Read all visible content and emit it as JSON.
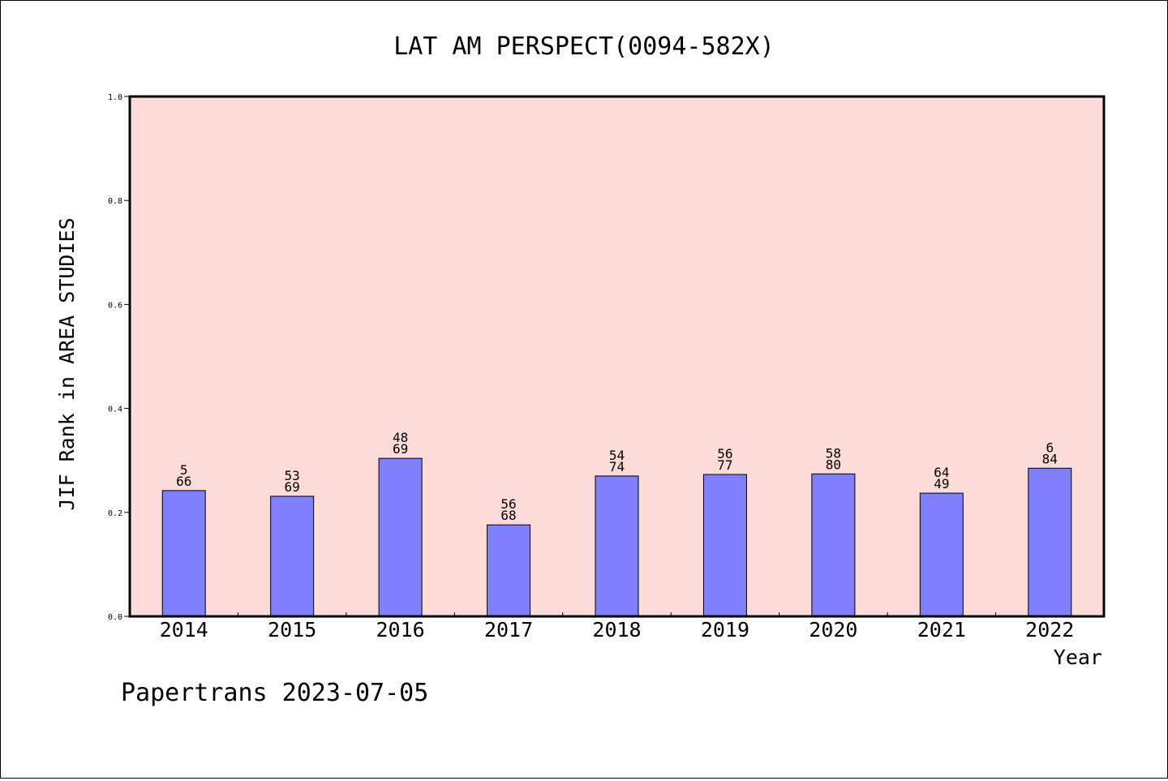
{
  "chart_data": {
    "type": "bar",
    "title": "LAT AM PERSPECT(0094-582X)",
    "xlabel": "Year",
    "ylabel": "JIF Rank in AREA STUDIES",
    "ylim": [
      0,
      1.0
    ],
    "yticks": [
      "0.0",
      "0.2",
      "0.4",
      "0.6",
      "0.8",
      "1.0"
    ],
    "grid": false,
    "background_color": "#fddbd8",
    "bar_color": "#8080ff",
    "categories": [
      "2014",
      "2015",
      "2016",
      "2017",
      "2018",
      "2019",
      "2020",
      "2021",
      "2022"
    ],
    "values": [
      0.242,
      0.231,
      0.304,
      0.176,
      0.27,
      0.273,
      0.274,
      0.237,
      0.285
    ],
    "rank_labels": [
      "5",
      "53",
      "48",
      "56",
      "54",
      "56",
      "58",
      "64",
      "6"
    ],
    "total_labels": [
      "66",
      "69",
      "69",
      "68",
      "74",
      "77",
      "80",
      "49",
      "84"
    ]
  },
  "footer": {
    "watermark": "Papertrans 2023-07-05"
  }
}
